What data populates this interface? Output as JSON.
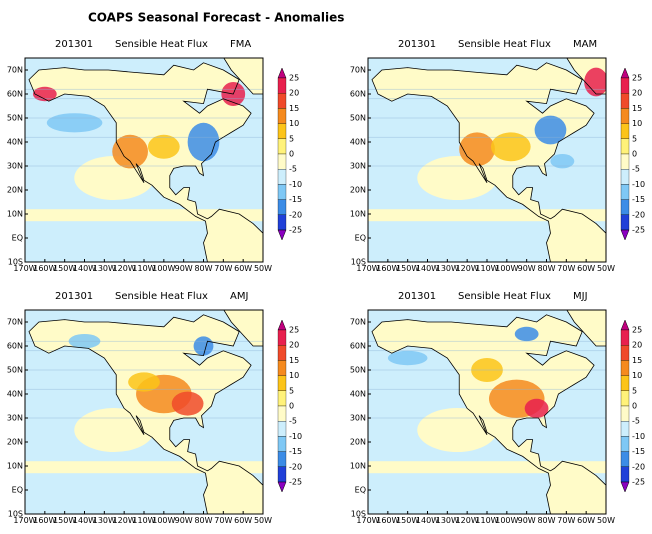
{
  "title": "COAPS Seasonal Forecast - Anomalies",
  "panels": [
    {
      "date": "201301",
      "variable": "Sensible Heat Flux",
      "season": "FMA"
    },
    {
      "date": "201301",
      "variable": "Sensible Heat Flux",
      "season": "MAM"
    },
    {
      "date": "201301",
      "variable": "Sensible Heat Flux",
      "season": "AMJ"
    },
    {
      "date": "201301",
      "variable": "Sensible Heat Flux",
      "season": "MJJ"
    }
  ],
  "lat_labels": [
    "70N",
    "60N",
    "50N",
    "40N",
    "30N",
    "20N",
    "10N",
    "EQ",
    "10S"
  ],
  "lon_labels": [
    "170W",
    "160W",
    "150W",
    "140W",
    "130W",
    "120W",
    "110W",
    "100W",
    "90W",
    "80W",
    "70W",
    "60W",
    "50W"
  ],
  "colorbar": {
    "ticks": [
      25,
      20,
      15,
      10,
      5,
      0,
      -5,
      -10,
      -15,
      -20,
      -25
    ],
    "colors": [
      "#c0007e",
      "#e8204e",
      "#f04a2a",
      "#f58a1e",
      "#fcc419",
      "#fff27a",
      "#fffbc8",
      "#cdeefc",
      "#7fc8f5",
      "#3c8ce6",
      "#2040d8",
      "#5a18c8",
      "#8a00c0"
    ]
  }
}
